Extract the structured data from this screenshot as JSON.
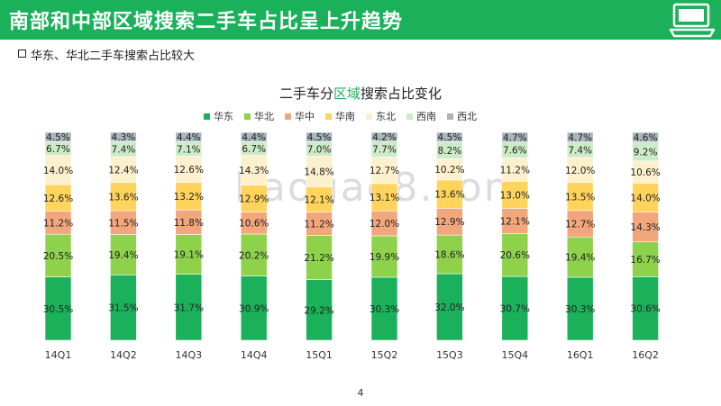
{
  "header": {
    "title": "南部和中部区域搜索二手车占比呈上升趋势",
    "icon": "laptop-icon"
  },
  "subtitle": "华东、华北二手车搜索占比较大",
  "chart_title": {
    "prefix": "二手车分",
    "highlight": "区域",
    "suffix": "搜索占比变化"
  },
  "watermark": "baogao8.com",
  "page_number": "4",
  "colors": {
    "header": "#1bb15a",
    "华东": "#1bb15a",
    "华北": "#8ed14b",
    "华中": "#f2a67c",
    "华南": "#ffd45c",
    "东北": "#fdf0cc",
    "西南": "#cdebc7",
    "西北": "#a9b6be"
  },
  "chart_data": {
    "type": "bar",
    "stacked": true,
    "title": "二手车分区域搜索占比变化",
    "categories": [
      "14Q1",
      "14Q2",
      "14Q3",
      "14Q4",
      "15Q1",
      "15Q2",
      "15Q3",
      "15Q4",
      "16Q1",
      "16Q2"
    ],
    "series": [
      {
        "name": "华东",
        "color": "#1bb15a",
        "values": [
          30.5,
          31.5,
          31.7,
          30.9,
          29.2,
          30.3,
          32.0,
          30.7,
          30.3,
          30.6
        ],
        "labels": [
          "30.5%",
          "31.5%",
          "31.7%",
          "30.9%",
          "29.2%",
          "30.3%",
          "32.0%",
          "30.7%",
          "30.3%",
          "30.6%"
        ]
      },
      {
        "name": "华北",
        "color": "#8ed14b",
        "values": [
          20.5,
          19.4,
          19.1,
          20.2,
          21.2,
          19.9,
          18.6,
          20.6,
          19.4,
          16.7
        ],
        "labels": [
          "20.5%",
          "19.4%",
          "19.1%",
          "20.2%",
          "21.2%",
          "19.9%",
          "18.6%",
          "20.6%",
          "19.4%",
          "16.7%"
        ]
      },
      {
        "name": "华中",
        "color": "#f2a67c",
        "values": [
          11.2,
          11.5,
          11.8,
          10.6,
          11.2,
          12.0,
          12.9,
          12.1,
          12.7,
          14.3
        ],
        "labels": [
          "11.2%",
          "11.5%",
          "11.8%",
          "10.6%",
          "11.2%",
          "12.0%",
          "12.9%",
          "12.1%",
          "12.7%",
          "14.3%"
        ]
      },
      {
        "name": "华南",
        "color": "#ffd45c",
        "values": [
          12.6,
          13.6,
          13.2,
          12.9,
          12.1,
          13.1,
          13.6,
          13.0,
          13.5,
          14.0
        ],
        "labels": [
          "12.6%",
          "13.6%",
          "13.2%",
          "12.9%",
          "12.1%",
          "13.1%",
          "13.6%",
          "13.0%",
          "13.5%",
          "14.0%"
        ]
      },
      {
        "name": "东北",
        "color": "#fdf0cc",
        "values": [
          14.0,
          12.4,
          12.6,
          14.3,
          14.8,
          12.7,
          10.2,
          11.2,
          12.0,
          10.6
        ],
        "labels": [
          "14.0%",
          "12.4%",
          "12.6%",
          "14.3%",
          "14.8%",
          "12.7%",
          "10.2%",
          "11.2%",
          "12.0%",
          "10.6%"
        ]
      },
      {
        "name": "西南",
        "color": "#cdebc7",
        "values": [
          6.7,
          7.4,
          7.1,
          6.7,
          7.0,
          7.7,
          8.2,
          7.6,
          7.4,
          9.2
        ],
        "labels": [
          "6.7%",
          "7.4%",
          "7.1%",
          "6.7%",
          "7.0%",
          "7.7%",
          "8.2%",
          "7.6%",
          "7.4%",
          "9.2%"
        ]
      },
      {
        "name": "西北",
        "color": "#a9b6be",
        "values": [
          4.5,
          4.3,
          4.4,
          4.4,
          4.5,
          4.2,
          4.5,
          4.7,
          4.7,
          4.6
        ],
        "labels": [
          "4.5%",
          "4.3%",
          "4.4%",
          "4.4%",
          "4.5%",
          "4.2%",
          "4.5%",
          "4.7%",
          "4.7%",
          "4.6%"
        ]
      }
    ],
    "legend_position": "top",
    "grid": false,
    "ylim": [
      0,
      100
    ]
  }
}
